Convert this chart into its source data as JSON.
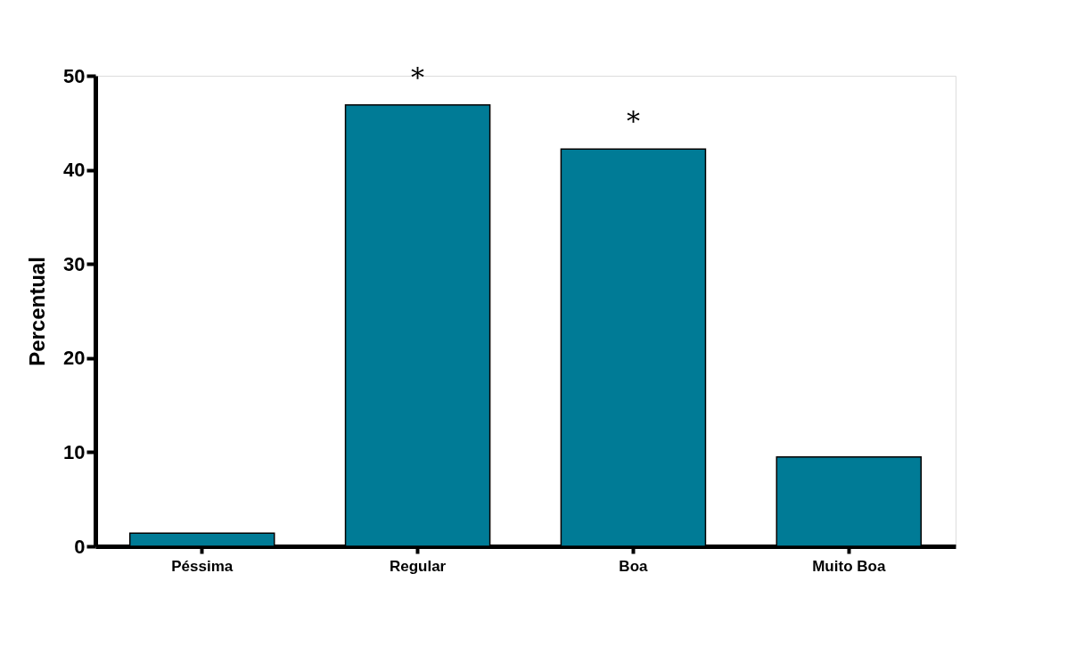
{
  "chart_data": {
    "type": "bar",
    "ylabel": "Percentual",
    "categories": [
      "Péssima",
      "Regular",
      "Boa",
      "Muito Boa"
    ],
    "values": [
      1.4,
      46.9,
      42.2,
      9.5
    ],
    "color": "#007b96",
    "ylim": [
      0,
      50
    ],
    "yticks": [
      0,
      10,
      20,
      30,
      40,
      50
    ],
    "grid": false,
    "annotations": [
      {
        "text": "*",
        "x": "Regular",
        "y": 46.9
      },
      {
        "text": "*",
        "x": "Boa",
        "y": 42.2
      }
    ]
  }
}
